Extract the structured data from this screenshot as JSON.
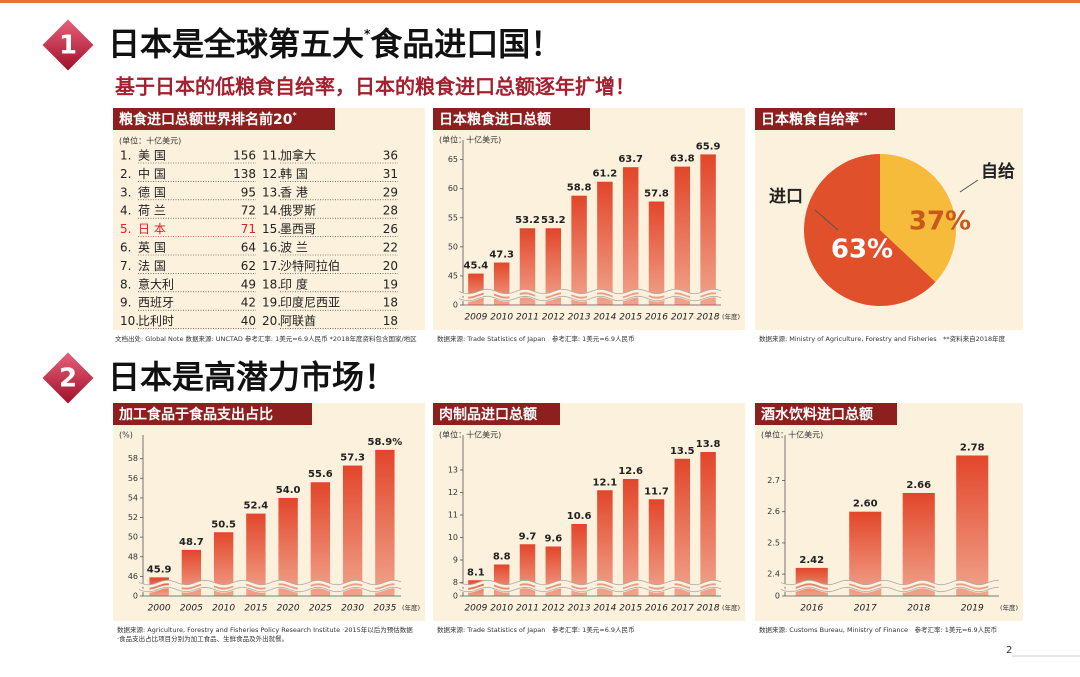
{
  "sections": [
    {
      "number": "1",
      "title": "日本是全球第五大",
      "title_mark": "*",
      "title_end": "食品进口国！",
      "subtitle": "基于日本的低粮食自给率，日本的粮食进口总额逐年扩增！"
    },
    {
      "number": "2",
      "title": "日本是高潜力市场！"
    }
  ],
  "ranking": {
    "title": "粮食进口总额世界排名前20",
    "title_mark": "*",
    "unit": "(单位：十亿美元)",
    "rows": [
      {
        "rank": "1.",
        "name": "美 国",
        "value": 156
      },
      {
        "rank": "2.",
        "name": "中 国",
        "value": 138
      },
      {
        "rank": "3.",
        "name": "德 国",
        "value": 95
      },
      {
        "rank": "4.",
        "name": "荷 兰",
        "value": 72
      },
      {
        "rank": "5.",
        "name": "日 本",
        "value": 71,
        "color": "#d8232a"
      },
      {
        "rank": "6.",
        "name": "英 国",
        "value": 64
      },
      {
        "rank": "7.",
        "name": "法 国",
        "value": 62
      },
      {
        "rank": "8.",
        "name": "意大利",
        "value": 49
      },
      {
        "rank": "9.",
        "name": "西班牙",
        "value": 42
      },
      {
        "rank": "10.",
        "name": "比利时",
        "value": 40
      },
      {
        "rank": "11.",
        "name": "加拿大",
        "value": 36
      },
      {
        "rank": "12.",
        "name": "韩 国",
        "value": 31
      },
      {
        "rank": "13.",
        "name": "香 港",
        "value": 29
      },
      {
        "rank": "14.",
        "name": "俄罗斯",
        "value": 28
      },
      {
        "rank": "15.",
        "name": "墨西哥",
        "value": 26
      },
      {
        "rank": "16.",
        "name": "波 兰",
        "value": 22
      },
      {
        "rank": "17.",
        "name": "沙特阿拉伯",
        "value": 20
      },
      {
        "rank": "18.",
        "name": "印 度",
        "value": 19
      },
      {
        "rank": "19.",
        "name": "印度尼西亚",
        "value": 18
      },
      {
        "rank": "20.",
        "name": "阿联酋",
        "value": 18
      }
    ],
    "footnote": "文档出处: Global Note 数据来源: UNCTAD 参考汇率: 1美元=6.9人民币 *2018年度资料包含国家/地区"
  },
  "chart_data": [
    {
      "type": "bar",
      "title": "日本粮食进口总额",
      "unit_label": "(单位：十亿美元)",
      "categories": [
        "2009",
        "2010",
        "2011",
        "2012",
        "2013",
        "2014",
        "2015",
        "2016",
        "2017",
        "2018"
      ],
      "values": [
        45.4,
        47.3,
        53.2,
        53.2,
        58.8,
        61.2,
        63.7,
        57.8,
        63.8,
        65.9
      ],
      "color": "#e2462a",
      "ylim": [
        0,
        67
      ],
      "axis_break": [
        0,
        40
      ],
      "yticks": [
        0,
        45,
        50,
        55,
        60,
        65
      ],
      "x_label": "(年度)",
      "footnotes": [
        "数据来源: Trade Statistics of Japan　参考汇率: 1美元=6.9人民币"
      ]
    },
    {
      "type": "pie",
      "title": "日本粮食自给率",
      "title_mark": "**",
      "categories": [
        "自给",
        "进口"
      ],
      "values": [
        37,
        63
      ],
      "value_labels": [
        "37%",
        "63%"
      ],
      "colors": [
        "#f6bb3a",
        "#e0502a"
      ],
      "footnotes": [
        "数据来源: Ministry of Agriculture, Forestry and Fisheries　**资料来自2018年度"
      ]
    },
    {
      "type": "bar",
      "title": "加工食品于食品支出占比",
      "unit_label": "(%)",
      "categories": [
        "2000",
        "2005",
        "2010",
        "2015",
        "2020",
        "2025",
        "2030",
        "2035"
      ],
      "values": [
        45.9,
        48.7,
        50.5,
        52.4,
        54.0,
        55.6,
        57.3,
        58.9
      ],
      "value_labels": [
        "45.9",
        "48.7",
        "50.5",
        "52.4",
        "54.0",
        "55.6",
        "57.3",
        "58.9%"
      ],
      "color": "#e2462a",
      "ylim": [
        0,
        59.6
      ],
      "axis_break": [
        0,
        44
      ],
      "yticks": [
        0,
        46,
        48,
        50,
        52,
        54,
        56,
        58
      ],
      "x_label": "(年度)",
      "footnotes": [
        "数据来源: Agriculture, Forestry and Fisheries Policy Research Institute ·2015年以后为预估数据",
        "·食品支出占比项目分别为加工食品、生鲜食品及外出就餐。"
      ]
    },
    {
      "type": "bar",
      "title": "肉制品进口总额",
      "unit_label": "(单位：十亿美元)",
      "categories": [
        "2009",
        "2010",
        "2011",
        "2012",
        "2013",
        "2014",
        "2015",
        "2016",
        "2017",
        "2018"
      ],
      "values": [
        8.1,
        8.8,
        9.7,
        9.6,
        10.6,
        12.1,
        12.6,
        11.7,
        13.5,
        13.8
      ],
      "color": "#e2462a",
      "ylim": [
        0,
        14.2
      ],
      "axis_break": [
        0,
        7.4
      ],
      "yticks": [
        0,
        8,
        9,
        10,
        11,
        12,
        13
      ],
      "x_label": "(年度)",
      "footnotes": [
        "数据来源: Trade Statistics of Japan　参考汇率: 1美元=6.9人民币"
      ]
    },
    {
      "type": "bar",
      "title": "酒水饮料进口总额",
      "unit_label": "(单位：十亿美元)",
      "categories": [
        "2016",
        "2017",
        "2018",
        "2019"
      ],
      "values": [
        2.42,
        2.6,
        2.66,
        2.78
      ],
      "value_labels": [
        "2.42",
        "2.60",
        "2.66",
        "2.78"
      ],
      "color": "#e2462a",
      "ylim": [
        0,
        2.82
      ],
      "axis_break": [
        0,
        2.33
      ],
      "yticks": [
        0,
        2.4,
        2.5,
        2.6,
        2.7
      ],
      "x_label": "(年度)",
      "footnotes": [
        "数据来源: Customs Bureau, Ministry of Finance　参考汇率: 1美元=6.9人民币"
      ]
    }
  ],
  "page_number": "2"
}
